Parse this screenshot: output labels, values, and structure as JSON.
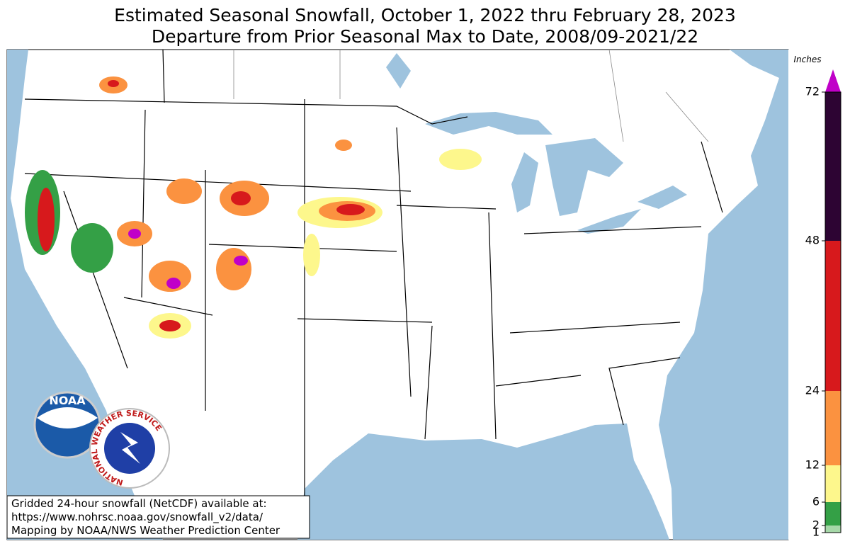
{
  "header": {
    "title": "Estimated Seasonal Snowfall, October 1, 2022 thru February 28, 2023",
    "subtitle": "Departure from Prior Seasonal Max to Date, 2008/09-2021/22"
  },
  "colorbar": {
    "label": "Inches",
    "ticks": [
      1,
      2,
      6,
      12,
      24,
      48,
      72
    ],
    "colors": [
      "#a6d8a8",
      "#34a046",
      "#fdf78c",
      "#fb9240",
      "#d7191c",
      "#2d0433",
      "#c000c8"
    ]
  },
  "footer": {
    "lines": [
      "Gridded 24-hour snowfall (NetCDF) available at:",
      "https://www.nohrsc.noaa.gov/snowfall_v2/data/",
      "Mapping by NOAA/NWS Weather Prediction Center"
    ]
  },
  "logos": {
    "noaa": "NOAA",
    "nws": "NATIONAL WEATHER SERVICE"
  }
}
